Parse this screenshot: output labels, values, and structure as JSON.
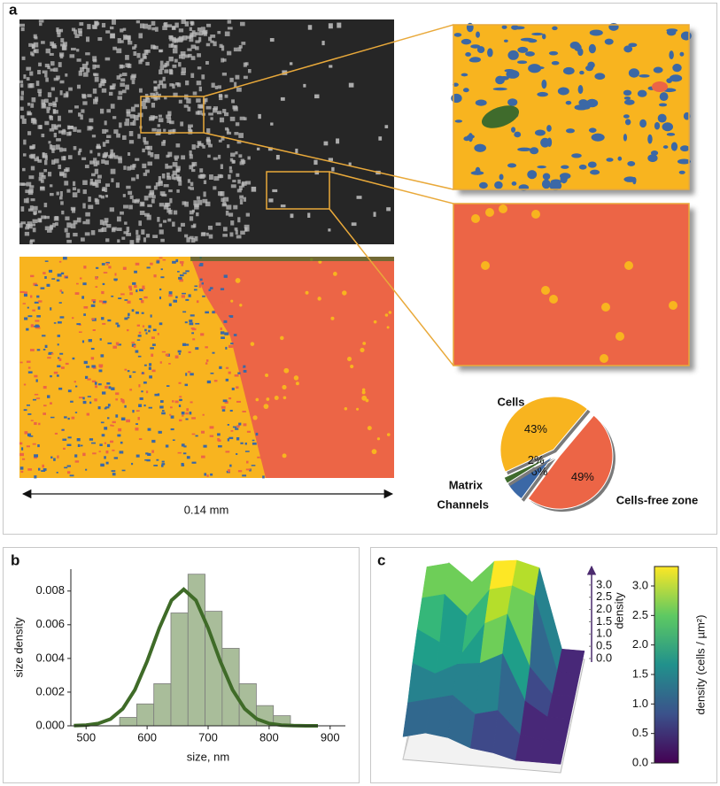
{
  "panel_labels": [
    "a",
    "b",
    "c"
  ],
  "scale_bar": "0.14 mm",
  "chart_data": [
    {
      "type": "pie",
      "categories": [
        "Cells",
        "Cells-free zone",
        "Channels",
        "Matrix"
      ],
      "values": [
        43,
        49,
        6,
        2
      ],
      "value_labels": [
        "43%",
        "49%",
        "6%",
        "2%"
      ],
      "colors": [
        "#f8b41f",
        "#ec6546",
        "#3b68a6",
        "#3f6b2c"
      ]
    },
    {
      "type": "histogram",
      "bins": [
        555,
        583,
        611,
        639,
        667,
        695,
        723,
        751,
        779,
        807,
        835
      ],
      "values": [
        0.0005,
        0.0013,
        0.0025,
        0.0067,
        0.009,
        0.0068,
        0.0046,
        0.0025,
        0.0012,
        0.0006
      ],
      "color": "#a9bd9a",
      "series": [
        {
          "color": "#3f6b28",
          "x": [
            480,
            500,
            520,
            540,
            560,
            580,
            600,
            620,
            640,
            660,
            680,
            700,
            720,
            740,
            760,
            780,
            800,
            820,
            840,
            860,
            880
          ],
          "values": [
            1e-05,
            4e-05,
            0.00014,
            0.0004,
            0.00101,
            0.00214,
            0.00383,
            0.0058,
            0.00745,
            0.0081,
            0.00745,
            0.0058,
            0.00383,
            0.00214,
            0.00101,
            0.0004,
            0.00014,
            4e-05,
            1e-05,
            0,
            0
          ]
        }
      ],
      "xlabel": "size, nm",
      "ylabel": "size density",
      "xlim": [
        475,
        925
      ],
      "ylim": [
        0,
        0.0093
      ],
      "xticks": [
        500,
        600,
        700,
        800,
        900
      ],
      "yticks": [
        {
          "value": 0,
          "label": "0.000"
        },
        0.002,
        0.004,
        0.006,
        0.008
      ]
    },
    {
      "type": "surface",
      "z": [
        [
          2.8,
          3.0,
          2.4,
          3.2,
          3.3,
          3.1,
          0.3,
          0.3
        ],
        [
          2.5,
          2.7,
          2.0,
          3.0,
          3.2,
          2.9,
          0.3,
          0.3
        ],
        [
          2.2,
          1.8,
          1.5,
          2.6,
          3.0,
          1.2,
          0.3,
          0.3
        ],
        [
          1.8,
          1.5,
          1.9,
          2.0,
          2.4,
          0.8,
          0.3,
          0.3
        ],
        [
          1.2,
          1.4,
          1.6,
          1.0,
          1.2,
          0.4,
          0.3,
          0.3
        ],
        [
          0.8,
          1.0,
          0.9,
          0.6,
          0.5,
          0.3,
          0.3,
          0.3
        ]
      ],
      "zlim": [
        0,
        3.33
      ],
      "zticks": [
        {
          "value": 0,
          "label": "0.0"
        },
        0.5,
        {
          "value": 1,
          "label": "1.0"
        },
        1.5,
        {
          "value": 2,
          "label": "2.0"
        },
        2.5,
        {
          "value": 3,
          "label": "3.0"
        }
      ],
      "zlabel": "density",
      "colorbar_label": "density (cells / µm²)",
      "colormap": "viridis"
    }
  ]
}
